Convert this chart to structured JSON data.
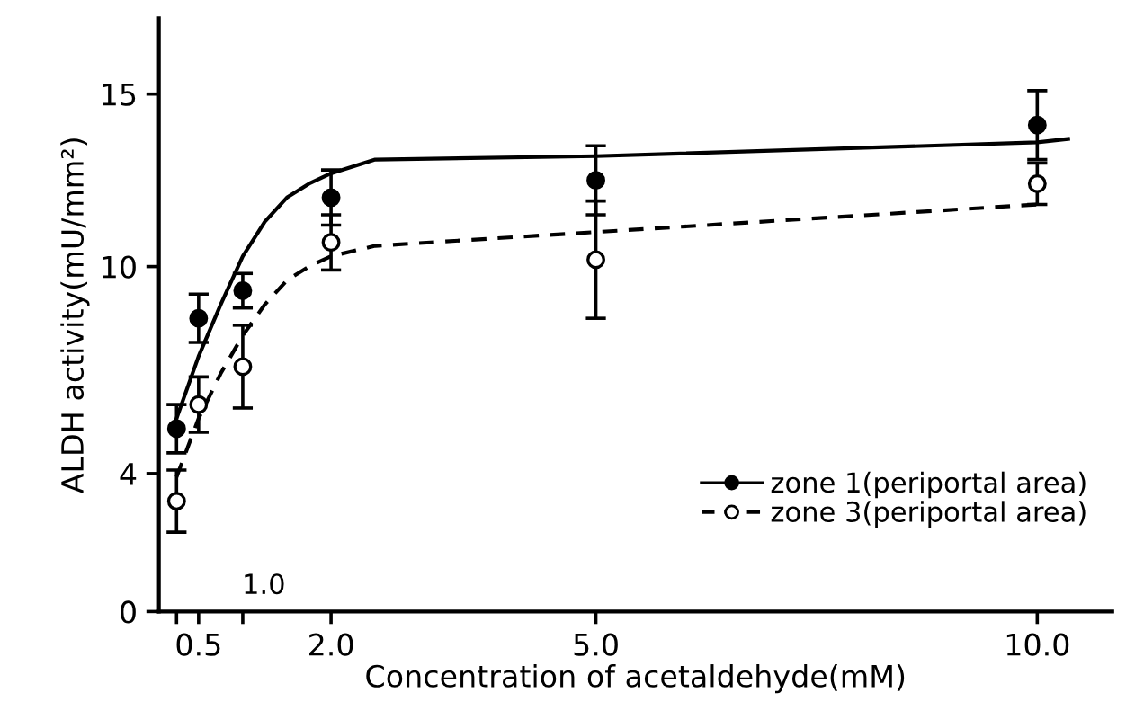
{
  "chart_data": {
    "type": "scatter",
    "xlabel": "Concentration of acetaldehyde(mM)",
    "ylabel": "ALDH activity(mU/mm²)",
    "xlim": [
      0.05,
      10.85
    ],
    "ylim": [
      0,
      17.2
    ],
    "xticks": [
      {
        "value": 0.25,
        "label": null
      },
      0.5,
      {
        "value": 1.0,
        "label": null
      },
      {
        "value": 2.0,
        "label": "2.0"
      },
      {
        "value": 5.0,
        "label": "5.0"
      },
      {
        "value": 10.0,
        "label": "10.0"
      }
    ],
    "yticks": [
      0,
      4,
      10,
      15
    ],
    "annotations": [
      "1.0"
    ],
    "legend": "bottom right",
    "grid": false,
    "series": [
      {
        "name": "zone 1(periportal area)",
        "marker": "circle",
        "color": "#000000",
        "line_style": "solid",
        "x": [
          0.25,
          0.5,
          1.0,
          2.0,
          5.0,
          10.0
        ],
        "values": [
          5.3,
          8.5,
          9.3,
          12.0,
          12.5,
          14.1
        ],
        "errors": [
          0.7,
          0.7,
          0.5,
          0.8,
          1.0,
          1.0
        ]
      },
      {
        "name": "zone 3(periportal area)",
        "marker": "circle",
        "color": "#000000",
        "colors": [
          "#ffffff",
          "#ffffff",
          "#ffffff",
          "#ffffff",
          "#ffffff",
          "#ffffff"
        ],
        "line_style": "dashed",
        "x": [
          0.25,
          0.5,
          1.0,
          2.0,
          5.0,
          10.0
        ],
        "values": [
          3.2,
          6.0,
          7.1,
          10.7,
          10.2,
          12.4
        ],
        "errors": [
          0.9,
          0.8,
          1.2,
          0.8,
          1.7,
          0.6
        ]
      },
      {
        "type": "line",
        "marker": "none",
        "color": "#000000",
        "line_style": "solid",
        "x": [
          0.25,
          0.5,
          0.75,
          1.0,
          1.25,
          1.5,
          1.75,
          2.0,
          2.5,
          5.0,
          10.0,
          10.35
        ],
        "values": [
          5.6,
          7.4,
          8.9,
          10.3,
          11.3,
          12.0,
          12.4,
          12.7,
          13.1,
          13.2,
          13.6,
          13.7
        ]
      },
      {
        "type": "line",
        "marker": "none",
        "color": "#000000",
        "line_style": "dashed",
        "x": [
          0.25,
          0.5,
          0.75,
          1.0,
          1.25,
          1.5,
          1.75,
          2.0,
          2.5,
          5.0,
          10.0
        ],
        "values": [
          3.9,
          5.6,
          6.9,
          8.0,
          8.9,
          9.6,
          10.0,
          10.3,
          10.6,
          11.0,
          11.8
        ]
      }
    ]
  }
}
